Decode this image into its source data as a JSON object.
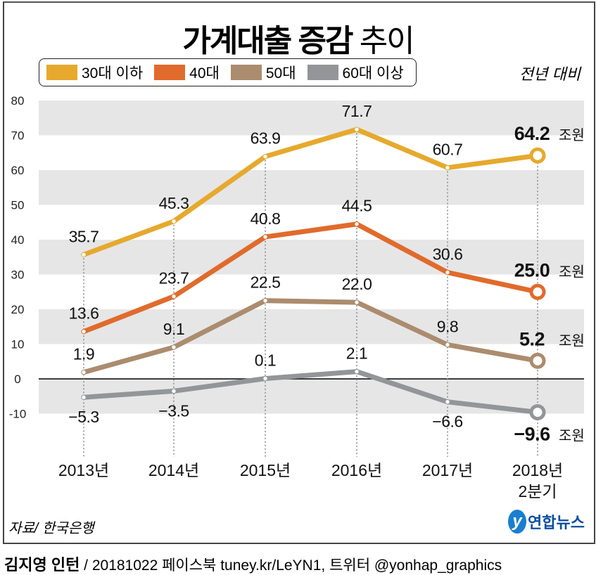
{
  "title_bold": "가계대출 증감",
  "title_light": "추이",
  "unit_note": "전년 대비",
  "source": "자료/ 한국은행",
  "logo_text": "연합뉴스",
  "credit_author": "김지영 인턴",
  "credit_rest": " / 20181022  페이스북 tuney.kr/LeYN1, 트위터 @yonhap_graphics",
  "value_suffix": "조원",
  "chart_data": {
    "type": "line",
    "categories": [
      "2013년",
      "2014년",
      "2015년",
      "2016년",
      "2017년",
      "2018년\n2분기"
    ],
    "category_lines": [
      [
        "2013년"
      ],
      [
        "2014년"
      ],
      [
        "2015년"
      ],
      [
        "2016년"
      ],
      [
        "2017년"
      ],
      [
        "2018년",
        "2분기"
      ]
    ],
    "ylim": [
      -10,
      80
    ],
    "yticks": [
      -10,
      0,
      10,
      20,
      30,
      40,
      50,
      60,
      70,
      80
    ],
    "ytick_labels": [
      "-10",
      "0",
      "10",
      "20",
      "30",
      "40",
      "50",
      "60",
      "70",
      "80"
    ],
    "grid": "alternating horizontal bands",
    "legend": "top-left",
    "series": [
      {
        "name": "30대 이하",
        "color": "#e6a92e",
        "values": [
          35.7,
          45.3,
          63.9,
          71.7,
          60.7,
          64.2
        ],
        "labels": [
          "35.7",
          "45.3",
          "63.9",
          "71.7",
          "60.7",
          "64.2"
        ]
      },
      {
        "name": "40대",
        "color": "#e06b2c",
        "values": [
          13.6,
          23.7,
          40.8,
          44.5,
          30.6,
          25.0
        ],
        "labels": [
          "13.6",
          "23.7",
          "40.8",
          "44.5",
          "30.6",
          "25.0"
        ]
      },
      {
        "name": "50대",
        "color": "#ab8c6e",
        "values": [
          1.9,
          9.1,
          22.5,
          22.0,
          9.8,
          5.2
        ],
        "labels": [
          "1.9",
          "9.1",
          "22.5",
          "22.0",
          "9.8",
          "5.2"
        ]
      },
      {
        "name": "60대 이상",
        "color": "#939598",
        "values": [
          -5.3,
          -3.5,
          0.1,
          2.1,
          -6.6,
          -9.6
        ],
        "labels": [
          "−5.3",
          "−3.5",
          "0.1",
          "2.1",
          "−6.6",
          "−9.6"
        ]
      }
    ]
  }
}
